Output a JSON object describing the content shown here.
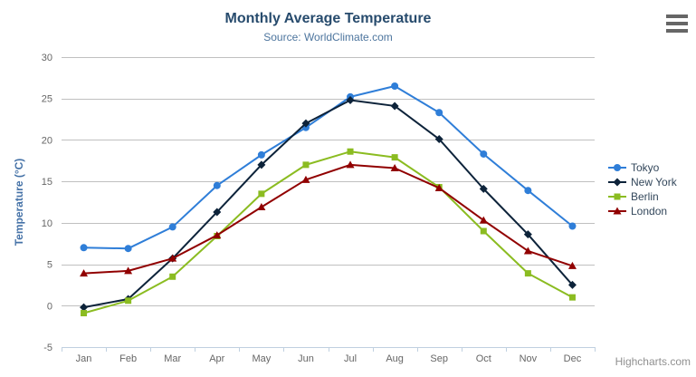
{
  "credits": "Highcharts.com",
  "icons": {
    "export_menu": "hamburger-icon"
  },
  "colors": {
    "title": "#274b6d",
    "subtitle": "#4d759e",
    "axis_label": "#666666",
    "axis_title": "#4572a7",
    "gridline": "#c0c0c0",
    "axis_line": "#c0d0e0",
    "legend_text": "#33475b",
    "credits_text": "#909090",
    "menu_icon": "#666666",
    "background": "#ffffff"
  },
  "chart_data": {
    "type": "line",
    "title": "Monthly Average Temperature",
    "subtitle": "Source: WorldClimate.com",
    "categories": [
      "Jan",
      "Feb",
      "Mar",
      "Apr",
      "May",
      "Jun",
      "Jul",
      "Aug",
      "Sep",
      "Oct",
      "Nov",
      "Dec"
    ],
    "xlabel": "",
    "ylabel": "Temperature (°C)",
    "ylim": [
      -5,
      30
    ],
    "ytick_interval": 5,
    "grid": true,
    "legend_position": "right",
    "series": [
      {
        "name": "Tokyo",
        "color": "#2f7ed8",
        "marker": "circle",
        "values": [
          7.0,
          6.9,
          9.5,
          14.5,
          18.2,
          21.5,
          25.2,
          26.5,
          23.3,
          18.3,
          13.9,
          9.6
        ]
      },
      {
        "name": "New York",
        "color": "#0d233a",
        "marker": "diamond",
        "values": [
          -0.2,
          0.8,
          5.7,
          11.3,
          17.0,
          22.0,
          24.8,
          24.1,
          20.1,
          14.1,
          8.6,
          2.5
        ]
      },
      {
        "name": "Berlin",
        "color": "#8bbc21",
        "marker": "square",
        "values": [
          -0.9,
          0.6,
          3.5,
          8.4,
          13.5,
          17.0,
          18.6,
          17.9,
          14.3,
          9.0,
          3.9,
          1.0
        ]
      },
      {
        "name": "London",
        "color": "#910000",
        "marker": "triangle",
        "values": [
          3.9,
          4.2,
          5.7,
          8.5,
          11.9,
          15.2,
          17.0,
          16.6,
          14.2,
          10.3,
          6.6,
          4.8
        ]
      }
    ]
  }
}
